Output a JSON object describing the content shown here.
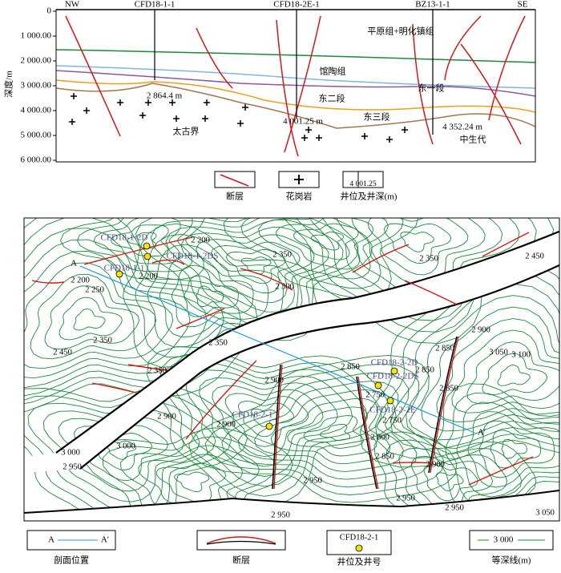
{
  "section": {
    "y_axis_label": "深度/m",
    "depth_ticks": [
      "0",
      "1 000.00",
      "2 000.00",
      "3 000.00",
      "4 000.00",
      "5 000.00",
      "6 000.00"
    ],
    "direction_left": "NW",
    "direction_right": "SE",
    "wells": [
      "CFD18-1-1",
      "CFD18-2E-1",
      "BZ13-1-1"
    ],
    "formations": [
      "平原组+明化镇组",
      "馆陶组",
      "东一段",
      "东二段",
      "东三段",
      "太古界",
      "中生代"
    ],
    "well_depths": [
      "2 864.4 m",
      "4 001.25 m",
      "4 352.24 m"
    ],
    "legend": {
      "fault": "断层",
      "granite": "花岗岩",
      "well": "井位及井深(m)",
      "well_sample": "4 001.25"
    }
  },
  "map": {
    "section_ends": [
      "A",
      "A′"
    ],
    "wells": [
      "CFD18-1-2D",
      "CFD18-1-2DS",
      "CFD18-1-1",
      "CFD18-2-2D",
      "CFD18-2-2DS",
      "CFD18-2-2E",
      "CFD18-2-1"
    ],
    "contour_labels": [
      "2 200",
      "2 200",
      "2 200",
      "2 250",
      "2 350",
      "2 350",
      "2 300",
      "2 450",
      "2 350",
      "2 350",
      "2 450",
      "2 350",
      "2 900",
      "2 850",
      "2 850",
      "2 900",
      "3 050",
      "3 100",
      "2 850",
      "2 750",
      "2 750",
      "2 850",
      "2 800",
      "2 850",
      "2 900",
      "2 900",
      "3 000",
      "3 000",
      "2 950",
      "2 950",
      "2 900",
      "2 950",
      "2 950",
      "2 950",
      "3 050"
    ],
    "legend": {
      "section_line": "剖面位置",
      "section_sample": [
        "A",
        "A′"
      ],
      "fault": "断层",
      "well": "井位及井号",
      "well_sample": "CFD18-2-1",
      "contour": "等深线(m)",
      "contour_sample": "3 000"
    }
  }
}
